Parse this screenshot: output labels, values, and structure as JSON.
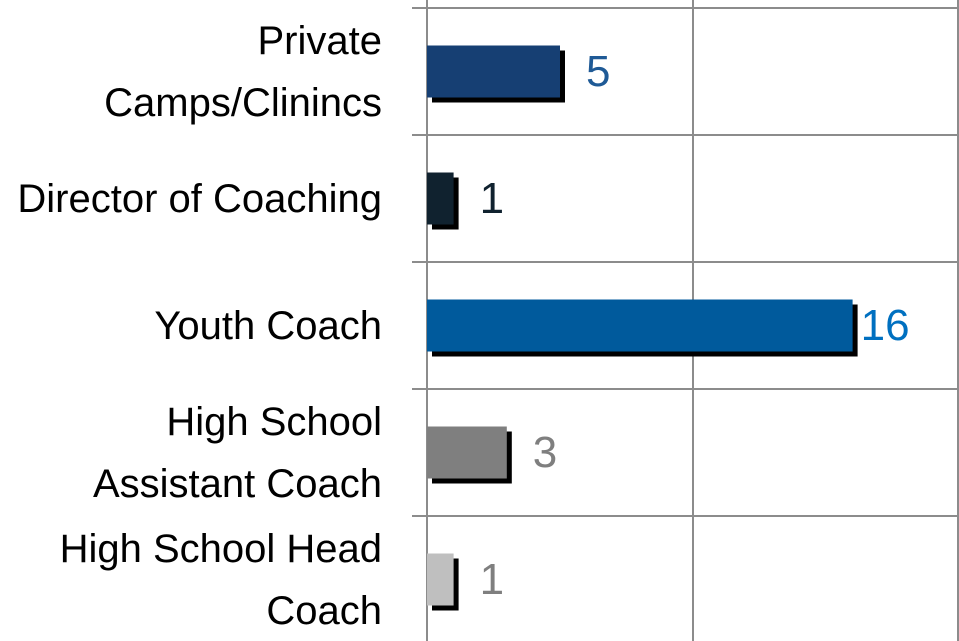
{
  "chart_data": {
    "type": "barh",
    "categories": [
      "Private Camps/Clinincs",
      "Director of Coaching",
      "Youth Coach",
      "High School Assistant Coach",
      "High School Head Coach"
    ],
    "values": [
      5,
      1,
      16,
      3,
      1
    ],
    "colors": [
      "#163f73",
      "#10222f",
      "#005a9c",
      "#7f7f7f",
      "#bfbfbf"
    ],
    "label_colors": [
      "#1f5a96",
      "#10222f",
      "#0070c0",
      "#7f7f7f",
      "#7f7f7f"
    ],
    "xlim": [
      0,
      20
    ],
    "xticks": [
      0,
      10,
      20
    ],
    "grid": true
  }
}
